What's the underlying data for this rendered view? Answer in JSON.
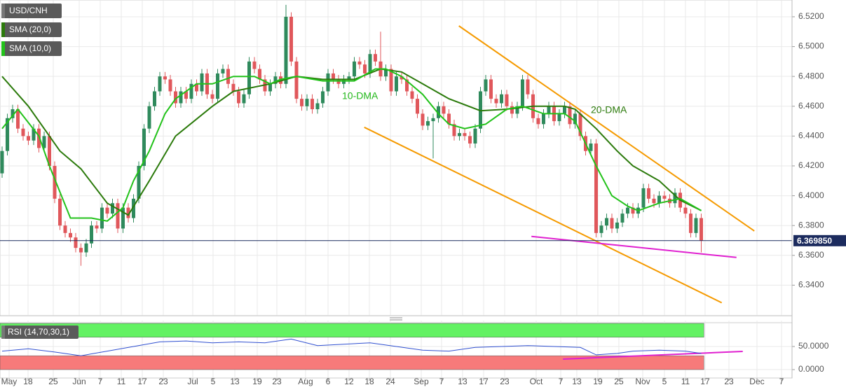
{
  "chart_data": [
    {
      "type": "candlestick",
      "name": "USD/CNH",
      "bull_color": "#2f8a5c",
      "bear_color": "#e0575b",
      "open": [
        6.415,
        6.43,
        6.452,
        6.458,
        6.445,
        6.44,
        6.437,
        6.445,
        6.432,
        6.44,
        6.42,
        6.398,
        6.38,
        6.375,
        6.372,
        6.365,
        6.362,
        6.368,
        6.38,
        6.378,
        6.392,
        6.388,
        6.395,
        6.378,
        6.392,
        6.385,
        6.398,
        6.42,
        6.445,
        6.46,
        6.47,
        6.48,
        6.478,
        6.47,
        6.462,
        6.47,
        6.465,
        6.475,
        6.47,
        6.482,
        6.468,
        6.465,
        6.482,
        6.485,
        6.475,
        6.47,
        6.462,
        6.468,
        6.49,
        6.485,
        6.478,
        6.47,
        6.475,
        6.48,
        6.475,
        6.52,
        6.49,
        6.465,
        6.46,
        6.465,
        6.458,
        6.462,
        6.47,
        6.482,
        6.478,
        6.475,
        6.478,
        6.48,
        6.49,
        6.488,
        6.482,
        6.495,
        6.49,
        6.48,
        6.485,
        6.47,
        6.48,
        6.478,
        6.47,
        6.465,
        6.455,
        6.447,
        6.45,
        6.452,
        6.46,
        6.455,
        6.448,
        6.44,
        6.442,
        6.44,
        6.435,
        6.445,
        6.47,
        6.478,
        6.465,
        6.462,
        6.468,
        6.46,
        6.455,
        6.46,
        6.478,
        6.468,
        6.452,
        6.448,
        6.455,
        6.46,
        6.45,
        6.455,
        6.46,
        6.448,
        6.455,
        6.44,
        6.43,
        6.435,
        6.375,
        6.38,
        6.385,
        6.378,
        6.382,
        6.388,
        6.392,
        6.388,
        6.392,
        6.405,
        6.398,
        6.395,
        6.4,
        6.398,
        6.395,
        6.402,
        6.392,
        6.388,
        6.375,
        6.385
      ],
      "high": [
        6.433,
        6.455,
        6.461,
        6.461,
        6.448,
        6.443,
        6.448,
        6.448,
        6.443,
        6.443,
        6.423,
        6.401,
        6.383,
        6.378,
        6.375,
        6.368,
        6.371,
        6.383,
        6.383,
        6.395,
        6.395,
        6.398,
        6.398,
        6.395,
        6.395,
        6.401,
        6.423,
        6.448,
        6.463,
        6.473,
        6.483,
        6.483,
        6.481,
        6.473,
        6.473,
        6.473,
        6.478,
        6.478,
        6.485,
        6.485,
        6.471,
        6.485,
        6.488,
        6.488,
        6.478,
        6.473,
        6.471,
        6.493,
        6.493,
        6.488,
        6.481,
        6.478,
        6.483,
        6.483,
        6.528,
        6.523,
        6.493,
        6.468,
        6.468,
        6.468,
        6.465,
        6.473,
        6.485,
        6.485,
        6.481,
        6.481,
        6.483,
        6.493,
        6.493,
        6.491,
        6.498,
        6.498,
        6.51,
        6.488,
        6.488,
        6.483,
        6.483,
        6.481,
        6.473,
        6.468,
        6.458,
        6.453,
        6.455,
        6.463,
        6.463,
        6.458,
        6.451,
        6.445,
        6.445,
        6.443,
        6.448,
        6.473,
        6.481,
        6.481,
        6.468,
        6.471,
        6.471,
        6.463,
        6.463,
        6.481,
        6.481,
        6.471,
        6.455,
        6.458,
        6.463,
        6.463,
        6.458,
        6.463,
        6.463,
        6.458,
        6.458,
        6.443,
        6.438,
        6.438,
        6.383,
        6.388,
        6.388,
        6.385,
        6.391,
        6.395,
        6.395,
        6.395,
        6.408,
        6.408,
        6.401,
        6.403,
        6.403,
        6.401,
        6.405,
        6.405,
        6.395,
        6.391,
        6.388,
        6.388
      ],
      "low": [
        6.412,
        6.427,
        6.449,
        6.442,
        6.437,
        6.434,
        6.434,
        6.429,
        6.429,
        6.417,
        6.395,
        6.377,
        6.372,
        6.369,
        6.362,
        6.353,
        6.359,
        6.365,
        6.375,
        6.375,
        6.385,
        6.385,
        6.375,
        6.375,
        6.382,
        6.382,
        6.395,
        6.417,
        6.442,
        6.457,
        6.467,
        6.475,
        6.467,
        6.459,
        6.459,
        6.462,
        6.462,
        6.467,
        6.467,
        6.465,
        6.462,
        6.462,
        6.479,
        6.472,
        6.467,
        6.459,
        6.459,
        6.465,
        6.482,
        6.475,
        6.467,
        6.467,
        6.472,
        6.472,
        6.472,
        6.487,
        6.462,
        6.457,
        6.457,
        6.455,
        6.455,
        6.459,
        6.467,
        6.475,
        6.472,
        6.472,
        6.475,
        6.477,
        6.485,
        6.479,
        6.479,
        6.487,
        6.477,
        6.477,
        6.467,
        6.467,
        6.475,
        6.467,
        6.462,
        6.452,
        6.444,
        6.444,
        6.425,
        6.449,
        6.452,
        6.445,
        6.437,
        6.437,
        6.437,
        6.432,
        6.432,
        6.442,
        6.467,
        6.462,
        6.459,
        6.459,
        6.457,
        6.452,
        6.452,
        6.457,
        6.465,
        6.449,
        6.445,
        6.445,
        6.452,
        6.447,
        6.447,
        6.452,
        6.445,
        6.445,
        6.437,
        6.427,
        6.427,
        6.372,
        6.372,
        6.377,
        6.375,
        6.375,
        6.379,
        6.385,
        6.385,
        6.385,
        6.389,
        6.395,
        6.392,
        6.392,
        6.395,
        6.392,
        6.392,
        6.389,
        6.385,
        6.372,
        6.372,
        6.362
      ],
      "close": [
        6.43,
        6.452,
        6.458,
        6.445,
        6.44,
        6.437,
        6.445,
        6.432,
        6.44,
        6.42,
        6.398,
        6.38,
        6.375,
        6.372,
        6.365,
        6.362,
        6.368,
        6.38,
        6.378,
        6.392,
        6.388,
        6.395,
        6.378,
        6.392,
        6.385,
        6.398,
        6.42,
        6.445,
        6.46,
        6.47,
        6.48,
        6.478,
        6.47,
        6.462,
        6.47,
        6.465,
        6.475,
        6.47,
        6.482,
        6.468,
        6.465,
        6.482,
        6.485,
        6.475,
        6.47,
        6.462,
        6.468,
        6.49,
        6.485,
        6.478,
        6.47,
        6.475,
        6.48,
        6.475,
        6.52,
        6.49,
        6.465,
        6.46,
        6.465,
        6.458,
        6.462,
        6.47,
        6.482,
        6.478,
        6.475,
        6.478,
        6.48,
        6.49,
        6.488,
        6.482,
        6.495,
        6.49,
        6.48,
        6.485,
        6.47,
        6.48,
        6.478,
        6.47,
        6.465,
        6.455,
        6.447,
        6.45,
        6.452,
        6.46,
        6.455,
        6.448,
        6.44,
        6.442,
        6.44,
        6.435,
        6.445,
        6.47,
        6.478,
        6.465,
        6.462,
        6.468,
        6.46,
        6.455,
        6.46,
        6.478,
        6.468,
        6.452,
        6.448,
        6.455,
        6.46,
        6.45,
        6.455,
        6.46,
        6.448,
        6.455,
        6.44,
        6.43,
        6.435,
        6.375,
        6.38,
        6.385,
        6.378,
        6.382,
        6.388,
        6.392,
        6.388,
        6.392,
        6.405,
        6.398,
        6.395,
        6.4,
        6.398,
        6.395,
        6.402,
        6.392,
        6.388,
        6.375,
        6.385,
        6.37
      ],
      "series": [
        {
          "name": "SMA (20,0)",
          "color": "#2b7a0b",
          "x": [
            0,
            5,
            11,
            15,
            20,
            24,
            28,
            33,
            40,
            44,
            51,
            56,
            61,
            67,
            72,
            76,
            80,
            85,
            91,
            96,
            101,
            107,
            109,
            113,
            117,
            120,
            125,
            129,
            133
          ],
          "values": [
            6.48,
            6.46,
            6.43,
            6.418,
            6.395,
            6.387,
            6.41,
            6.44,
            6.46,
            6.47,
            6.475,
            6.48,
            6.478,
            6.478,
            6.485,
            6.483,
            6.475,
            6.465,
            6.457,
            6.458,
            6.46,
            6.46,
            6.458,
            6.445,
            6.43,
            6.42,
            6.41,
            6.397,
            6.39
          ]
        },
        {
          "name": "SMA (10,0)",
          "color": "#22c21a",
          "x": [
            0,
            3,
            7,
            9,
            13,
            17,
            20,
            23,
            25,
            28,
            31,
            33,
            37,
            40,
            44,
            48,
            51,
            53,
            56,
            61,
            67,
            71,
            73,
            76,
            80,
            83,
            85,
            88,
            92,
            96,
            99,
            103,
            107,
            109,
            113,
            116,
            119,
            121,
            125,
            129,
            133
          ],
          "values": [
            6.445,
            6.458,
            6.44,
            6.42,
            6.385,
            6.385,
            6.383,
            6.392,
            6.41,
            6.43,
            6.455,
            6.465,
            6.475,
            6.475,
            6.48,
            6.48,
            6.475,
            6.478,
            6.48,
            6.477,
            6.477,
            6.485,
            6.485,
            6.48,
            6.468,
            6.455,
            6.448,
            6.445,
            6.448,
            6.458,
            6.46,
            6.455,
            6.455,
            6.45,
            6.42,
            6.4,
            6.393,
            6.39,
            6.395,
            6.398,
            6.39
          ]
        }
      ],
      "trendlines": [
        {
          "color": "#f59a00",
          "x": [
            86.9,
            143.1
          ],
          "values": [
            6.5139,
            6.3764
          ]
        },
        {
          "color": "#f59a00",
          "x": [
            68.9,
            136.9
          ],
          "values": [
            6.4459,
            6.3282
          ]
        },
        {
          "color": "#e020d0",
          "x": [
            100.7,
            139.7
          ],
          "values": [
            6.3727,
            6.3586
          ]
        }
      ],
      "annotations": [
        {
          "text": "10-DMA",
          "color": "#22b81a"
        },
        {
          "text": "20-DMA",
          "color": "#2b7a0b"
        }
      ],
      "last_price": 6.36985,
      "last_price_label": "6.369850",
      "last_price_color": "#1c2b5e",
      "xlim": [
        -0.4,
        150.27
      ],
      "xticks": [
        {
          "value": 1.33,
          "label": "May"
        },
        {
          "value": 4.93,
          "label": "18"
        },
        {
          "value": 9.73,
          "label": "25"
        },
        {
          "value": 14.67,
          "label": "Jun"
        },
        {
          "value": 18.67,
          "label": "7"
        },
        {
          "value": 22.67,
          "label": "11"
        },
        {
          "value": 26.67,
          "label": "17"
        },
        {
          "value": 30.67,
          "label": "23"
        },
        {
          "value": 36.27,
          "label": "Jul"
        },
        {
          "value": 40.13,
          "label": "5"
        },
        {
          "value": 44.27,
          "label": "13"
        },
        {
          "value": 48.53,
          "label": "19"
        },
        {
          "value": 52.27,
          "label": "23"
        },
        {
          "value": 57.73,
          "label": "Aug"
        },
        {
          "value": 62,
          "label": "6"
        },
        {
          "value": 66,
          "label": "12"
        },
        {
          "value": 69.87,
          "label": "18"
        },
        {
          "value": 73.87,
          "label": "24"
        },
        {
          "value": 79.73,
          "label": "Sep"
        },
        {
          "value": 83.6,
          "label": "7"
        },
        {
          "value": 87.6,
          "label": "13"
        },
        {
          "value": 91.6,
          "label": "17"
        },
        {
          "value": 95.6,
          "label": "23"
        },
        {
          "value": 101.6,
          "label": "Oct"
        },
        {
          "value": 106.27,
          "label": "7"
        },
        {
          "value": 109.33,
          "label": "13"
        },
        {
          "value": 113.33,
          "label": "19"
        },
        {
          "value": 117.33,
          "label": "25"
        },
        {
          "value": 121.87,
          "label": "Nov"
        },
        {
          "value": 126,
          "label": "5"
        },
        {
          "value": 130,
          "label": "11"
        },
        {
          "value": 133.73,
          "label": "17"
        },
        {
          "value": 138.27,
          "label": "23"
        },
        {
          "value": 143.6,
          "label": "Dec"
        },
        {
          "value": 148.27,
          "label": "7"
        }
      ],
      "ylim": [
        6.32,
        6.5289
      ],
      "yticks": [
        {
          "value": 6.34,
          "label": "6.3400"
        },
        {
          "value": 6.36,
          "label": "6.3600"
        },
        {
          "value": 6.38,
          "label": "6.3800"
        },
        {
          "value": 6.4,
          "label": "6.4000"
        },
        {
          "value": 6.42,
          "label": "6.4200"
        },
        {
          "value": 6.44,
          "label": "6.4400"
        },
        {
          "value": 6.46,
          "label": "6.4600"
        },
        {
          "value": 6.48,
          "label": "6.4800"
        },
        {
          "value": 6.5,
          "label": "6.5000"
        },
        {
          "value": 6.52,
          "label": "6.5200"
        }
      ],
      "grid": true
    },
    {
      "type": "line",
      "title": "RSI (14,70,30,1)",
      "color": "#2f4fd0",
      "x": [
        0,
        5,
        10,
        15,
        20,
        25,
        30,
        35,
        40,
        45,
        50,
        55,
        60,
        65,
        70,
        75,
        80,
        85,
        90,
        95,
        100,
        105,
        110,
        113,
        117,
        120,
        125,
        130,
        133
      ],
      "values": [
        40,
        45,
        38,
        30,
        40,
        50,
        60,
        62,
        58,
        60,
        58,
        66,
        52,
        55,
        58,
        50,
        42,
        40,
        48,
        50,
        52,
        50,
        48,
        32,
        35,
        40,
        42,
        40,
        35
      ],
      "bands": [
        {
          "from": 70,
          "to": 100,
          "color": "#63f263"
        },
        {
          "from": 0,
          "to": 30,
          "color": "#f77a7a"
        }
      ],
      "trendlines": [
        {
          "color": "#e020d0",
          "x": [
            106.7,
            140.9
          ],
          "values": [
            22.7,
            39.4
          ]
        }
      ],
      "xlim": [
        -0.4,
        150.27
      ],
      "ylim": [
        -18.2,
        100
      ],
      "yticks": [
        {
          "value": 50,
          "label": "50.0000"
        },
        {
          "value": 0,
          "label": "0.0000"
        }
      ],
      "grid": true
    }
  ]
}
